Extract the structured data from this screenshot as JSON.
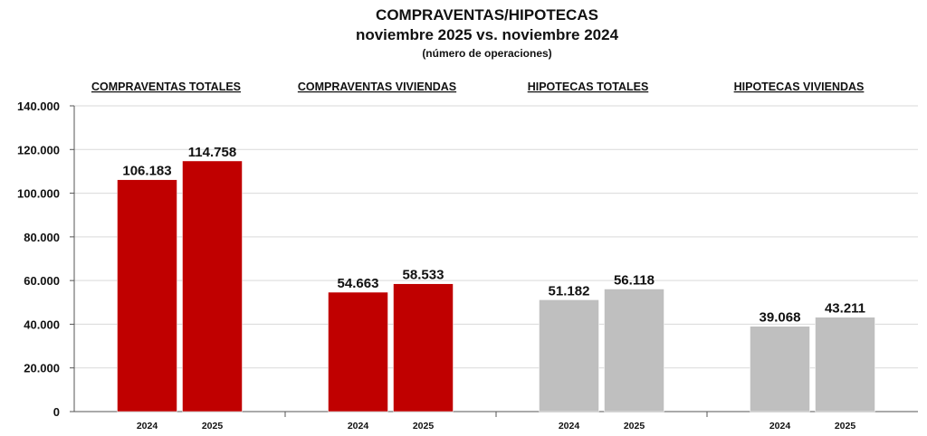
{
  "chart_data": {
    "type": "bar",
    "title": "COMPRAVENTAS/HIPOTECAS",
    "subtitle": "noviembre 2025 vs. noviembre 2024",
    "note": "(número de operaciones)",
    "ylim": [
      0,
      140000
    ],
    "yticks": [
      "0",
      "20.000",
      "40.000",
      "60.000",
      "80.000",
      "100.000",
      "120.000",
      "140.000"
    ],
    "grid": true,
    "colors": {
      "red": "#c00000",
      "gray": "#bfbfbf"
    },
    "groups": [
      {
        "name": "COMPRAVENTAS TOTALES",
        "color": "red",
        "bars": [
          {
            "x": "2024",
            "value": 106183,
            "label": "106.183"
          },
          {
            "x": "2025",
            "value": 114758,
            "label": "114.758"
          }
        ]
      },
      {
        "name": "COMPRAVENTAS VIVIENDAS",
        "color": "red",
        "bars": [
          {
            "x": "2024",
            "value": 54663,
            "label": "54.663"
          },
          {
            "x": "2025",
            "value": 58533,
            "label": "58.533"
          }
        ]
      },
      {
        "name": "HIPOTECAS TOTALES",
        "color": "gray",
        "bars": [
          {
            "x": "2024",
            "value": 51182,
            "label": "51.182"
          },
          {
            "x": "2025",
            "value": 56118,
            "label": "56.118"
          }
        ]
      },
      {
        "name": "HIPOTECAS VIVIENDAS",
        "color": "gray",
        "bars": [
          {
            "x": "2024",
            "value": 39068,
            "label": "39.068"
          },
          {
            "x": "2025",
            "value": 43211,
            "label": "43.211"
          }
        ]
      }
    ]
  }
}
